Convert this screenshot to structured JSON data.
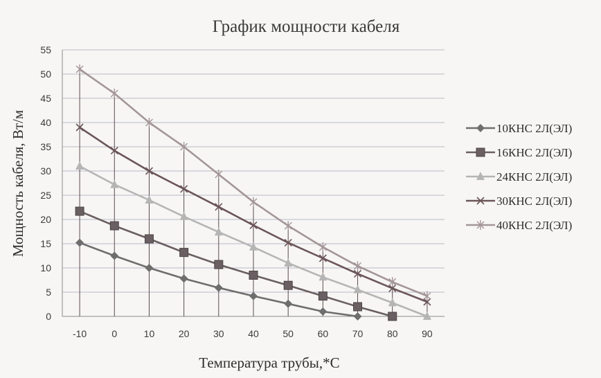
{
  "chart_data": {
    "type": "line",
    "title": "График мощности кабеля",
    "xlabel": "Температура трубы,*С",
    "ylabel": "Мощность кабеля, Вт/м",
    "categories": [
      "-10",
      "0",
      "10",
      "20",
      "30",
      "40",
      "50",
      "60",
      "70",
      "80",
      "90"
    ],
    "ylim": [
      0,
      55
    ],
    "yticks": [
      0,
      5,
      10,
      15,
      20,
      25,
      30,
      35,
      40,
      45,
      50,
      55
    ],
    "grid": true,
    "legend_position": "right",
    "series": [
      {
        "name": "10КНС 2Л(ЭЛ)",
        "marker": "diamond",
        "color": "#6e6e6e",
        "values": [
          15.2,
          12.5,
          10,
          7.8,
          5.9,
          4.2,
          2.6,
          1,
          0,
          null,
          null
        ]
      },
      {
        "name": "16КНС 2Л(ЭЛ)",
        "marker": "square",
        "color": "#6a5f62",
        "values": [
          21.7,
          18.7,
          16,
          13.2,
          10.7,
          8.5,
          6.4,
          4.2,
          2,
          0,
          null
        ]
      },
      {
        "name": "24КНС 2Л(ЭЛ)",
        "marker": "triangle",
        "color": "#b5b5b5",
        "values": [
          31,
          27.2,
          24,
          20.6,
          17.4,
          14.3,
          11,
          8.1,
          5.5,
          2.8,
          0
        ]
      },
      {
        "name": "30КНС 2Л(ЭЛ)",
        "marker": "x",
        "color": "#6b5558",
        "values": [
          39,
          34.2,
          30,
          26.3,
          22.6,
          18.8,
          15.2,
          12,
          8.8,
          5.8,
          3
        ]
      },
      {
        "name": "40КНС 2Л(ЭЛ)",
        "marker": "star",
        "color": "#a49698",
        "values": [
          51,
          46,
          40,
          35,
          29.3,
          23.6,
          18.7,
          14.3,
          10.4,
          7.1,
          4.2
        ]
      }
    ]
  }
}
